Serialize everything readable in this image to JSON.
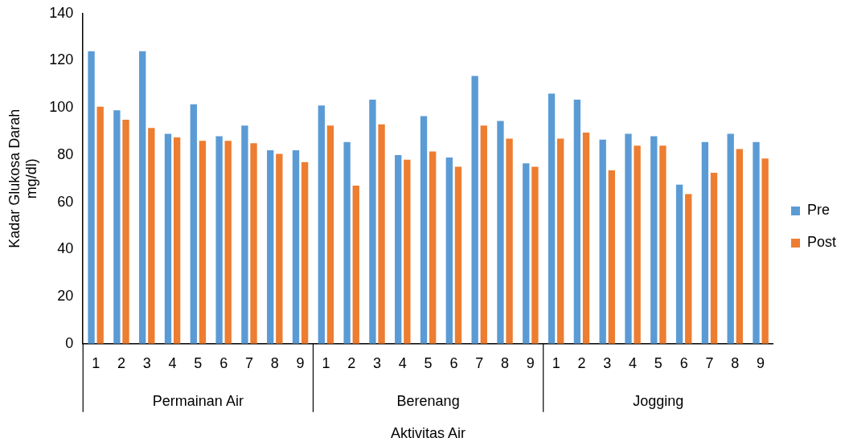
{
  "chart_data": {
    "type": "bar",
    "xlabel": "Aktivitas Air",
    "ylabel": "Kadar Glukosa Darah mg/dl)",
    "categories": [
      "1",
      "2",
      "3",
      "4",
      "5",
      "6",
      "7",
      "8",
      "9",
      "1",
      "2",
      "3",
      "4",
      "5",
      "6",
      "7",
      "8",
      "9",
      "1",
      "2",
      "3",
      "4",
      "5",
      "6",
      "7",
      "8",
      "9"
    ],
    "series": [
      {
        "name": "Pre",
        "color": "#5b9bd5",
        "values": [
          124,
          99,
          124,
          89,
          101.5,
          88,
          92.5,
          82,
          82,
          101,
          85.5,
          103.5,
          80,
          96.5,
          79,
          113.5,
          94.5,
          76.5,
          106,
          103.5,
          86.5,
          89,
          88,
          67.5,
          85.5,
          89,
          85.5
        ]
      },
      {
        "name": "Post",
        "color": "#ed7d31",
        "values": [
          100.5,
          95,
          91.5,
          87.5,
          86,
          86,
          85,
          80.5,
          77,
          92.5,
          67,
          93,
          78,
          81.5,
          75,
          92.5,
          87,
          75,
          87,
          89.5,
          73.5,
          84,
          84,
          63.5,
          72.5,
          82.5,
          78.5
        ]
      }
    ],
    "annotations": [
      "Permainan Air",
      "Berenang",
      "Jogging"
    ],
    "ylim": [
      0,
      140
    ],
    "yticks": [
      0,
      20,
      40,
      60,
      80,
      100,
      120,
      140
    ],
    "grid": false,
    "legend": "right"
  }
}
